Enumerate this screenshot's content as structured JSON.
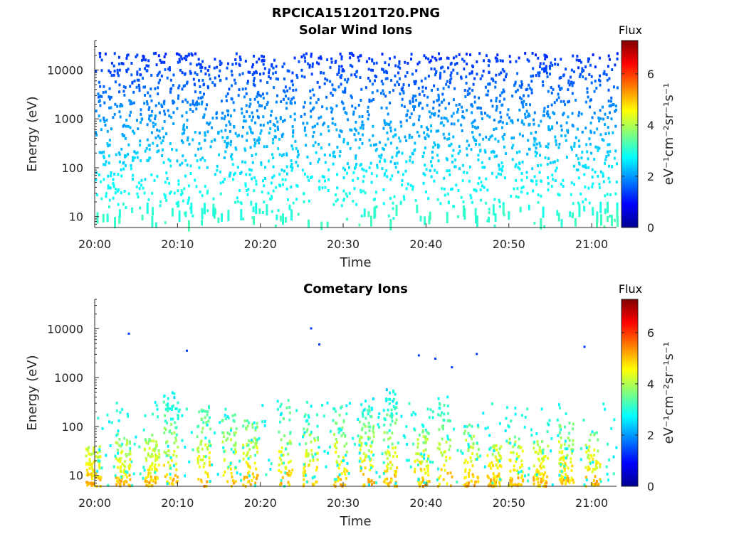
{
  "figure": {
    "title": "RPCICA151201T20.PNG",
    "colormap": "jet"
  },
  "chart_data": [
    {
      "type": "heatmap",
      "title": "Solar Wind Ions",
      "xlabel": "Time",
      "ylabel": "Energy (eV)",
      "y_scale": "log",
      "ylim": [
        6,
        40000
      ],
      "xlim": [
        "20:00",
        "21:03"
      ],
      "x_ticks": [
        "20:00",
        "20:10",
        "20:20",
        "20:30",
        "20:40",
        "20:50",
        "21:00"
      ],
      "y_ticks": [
        "10",
        "100",
        "1000",
        "10000"
      ],
      "colorbar": {
        "label": "Flux",
        "unit": "eV⁻¹cm⁻²sr⁻¹s⁻¹",
        "range": [
          0,
          7.3
        ],
        "ticks": [
          "0",
          "2",
          "4",
          "6"
        ]
      },
      "flux_typical": {
        "10-100 eV": 3.0,
        "100-1000 eV": 2.3,
        "1000-20000 eV": 1.6
      },
      "notes": "sparse scattered counts across all energies; densest 100 eV to 10 keV"
    },
    {
      "type": "heatmap",
      "title": "Cometary Ions",
      "xlabel": "Time",
      "ylabel": "Energy (eV)",
      "y_scale": "log",
      "ylim": [
        6,
        40000
      ],
      "xlim": [
        "20:00",
        "21:03"
      ],
      "x_ticks": [
        "20:00",
        "20:10",
        "20:20",
        "20:30",
        "20:40",
        "20:50",
        "21:00"
      ],
      "y_ticks": [
        "10",
        "100",
        "1000",
        "10000"
      ],
      "colorbar": {
        "label": "Flux",
        "unit": "eV⁻¹cm⁻²sr⁻¹s⁻¹",
        "range": [
          0,
          7.3
        ],
        "ticks": [
          "0",
          "2",
          "4",
          "6"
        ]
      },
      "bursts_time": [
        "20:00",
        "20:03",
        "20:07",
        "20:09",
        "20:13",
        "20:16",
        "20:19",
        "20:23",
        "20:26",
        "20:29",
        "20:33",
        "20:36",
        "20:39",
        "20:42",
        "20:45",
        "20:48",
        "20:51",
        "20:54",
        "20:57",
        "21:00"
      ],
      "flux_typical": {
        "6-30 eV": 4.5,
        "30-300 eV": 3.0,
        "300-800 eV": 2.5
      },
      "isolated_points": [
        {
          "time": "20:04",
          "energy": 7800
        },
        {
          "time": "20:11",
          "energy": 3500
        },
        {
          "time": "20:26",
          "energy": 10000
        },
        {
          "time": "20:27",
          "energy": 4700
        },
        {
          "time": "20:39",
          "energy": 2800
        },
        {
          "time": "20:41",
          "energy": 2400
        },
        {
          "time": "20:43",
          "energy": 1600
        },
        {
          "time": "20:46",
          "energy": 3000
        },
        {
          "time": "20:59",
          "energy": 4200
        }
      ]
    }
  ]
}
